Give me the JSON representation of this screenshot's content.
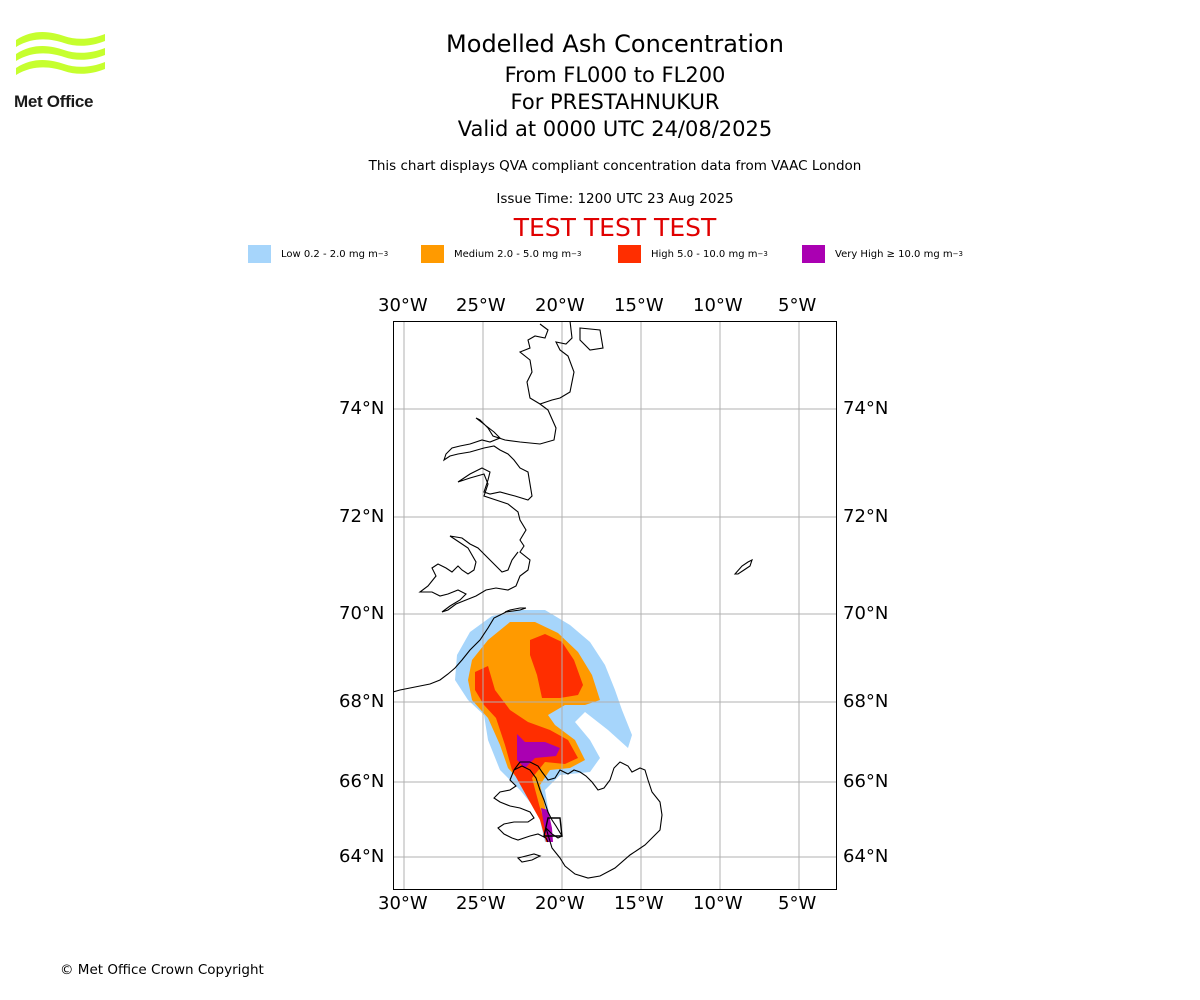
{
  "header": {
    "title": "Modelled Ash Concentration",
    "levels": "From FL000 to FL200",
    "volcano": "For PRESTAHNUKUR",
    "valid": "Valid at 0000 UTC 24/08/2025",
    "qva_note": "This chart displays QVA compliant concentration data from VAAC London",
    "issue_time": "Issue Time: 1200 UTC 23 Aug 2025",
    "test_banner": "TEST TEST TEST"
  },
  "logo": {
    "text": "Met Office",
    "icon": "met-office-wave-logo",
    "color": "#c6ff2e"
  },
  "legend": [
    {
      "label": "Low 0.2 - 2.0 mg m",
      "unit_sup": "−3",
      "color": "#a6d5fb"
    },
    {
      "label": "Medium 2.0 - 5.0 mg m",
      "unit_sup": "−3",
      "color": "#ff9a00"
    },
    {
      "label": "High 5.0 - 10.0 mg m",
      "unit_sup": "−3",
      "color": "#ff2e00"
    },
    {
      "label": "Very High ≥ 10.0 mg m",
      "unit_sup": "−3",
      "color": "#aa00b2"
    }
  ],
  "map": {
    "lon_ticks": [
      "30°W",
      "25°W",
      "20°W",
      "15°W",
      "10°W",
      "5°W"
    ],
    "lat_ticks": [
      "74°N",
      "72°N",
      "70°N",
      "68°N",
      "66°N",
      "64°N"
    ],
    "volcano_marker": "triangle-volcano-icon"
  },
  "footer": {
    "copyright": "© Met Office Crown Copyright"
  }
}
